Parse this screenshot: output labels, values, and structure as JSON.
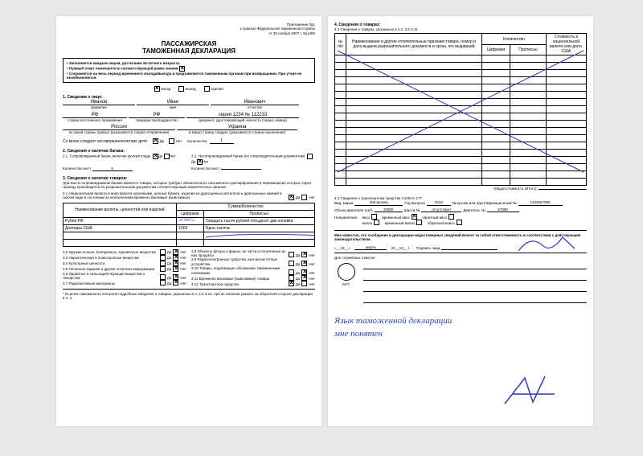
{
  "annex": {
    "line1": "Приложение №1",
    "line2": "к приказу Федеральной таможенной службы",
    "line3": "от 30 ноября 2007 г. №1480"
  },
  "title": {
    "l1": "ПАССАЖИРСКАЯ",
    "l2": "ТАМОЖЕННАЯ ДЕКЛАРАЦИЯ"
  },
  "instr": {
    "b1": "Заполняется каждым лицом, достигшим 16-летнего возраста.",
    "b2a": "Нужный ответ помечается в соответствующей рамке знаком",
    "b3": "Сохраняется на весь период временного въезда/выезда и предъявляется таможенным органам при возвращении. При утере не возобновляется."
  },
  "dir": {
    "in": "въезд",
    "out": "выезд",
    "tr": "транзит"
  },
  "s1": {
    "h": "1. Сведения о лице:",
    "fam": "Иванов",
    "famc": "фамилия",
    "name": "Иван",
    "namec": "имя",
    "patr": "Иванович",
    "patrc": "отчество",
    "ctz": "РФ",
    "ctzc": "страна постоянного проживания",
    "citz": "РФ",
    "citzc": "гражданство/подданство",
    "doc": "серия 1234 № 112233",
    "docc": "документ, удостоверяющий личность (серия, номер)",
    "from": "Россия",
    "fromc": "из какой страны прибыл (указывается страна отправления)",
    "to": "Украина",
    "toc": "в какую страну следует (указывается страна назначения)",
    "minors": "Со мною следуют несовершеннолетние дети",
    "da": "Да",
    "net": "Нет",
    "qty": "Количество:",
    "qtyv": "1"
  },
  "s2": {
    "h": "2. Сведения о наличии багажа:",
    "l21": "2.1. Сопровождаемый багаж, включая ручную кладь",
    "l22": "2.2. Несопровождаемый багаж (по сопроводительным документам)",
    "places": "Количество мест",
    "p1": "5",
    "p2": ""
  },
  "s3": {
    "h": "3. Сведения о наличии товаров:",
    "p": "При мне в сопровождаемом багаже имеются товары, которые требуют обязательного письменного декларирования и перемещение которых через границу производится по разрешительным документам соответствующих компетентных органов:",
    "l31": "3.1 Национальная валюта и иная валюта наличными, ценные бумаги, изделия из драгоценных металлов и драгоценных камней в любом виде и состоянии за исключением временно ввозимых (вывозимых)"
  },
  "cur": {
    "h1": "Наименование валюты, ценностей или изделий",
    "h2": "Сумма/Количество",
    "h2a": "Цифрами",
    "h2b": "Прописью",
    "r1": {
      "name": "Рубли РФ",
      "num": "30 000.52",
      "text": "Тридцать тысяч рублей пятьдесят две копейки"
    },
    "r2": {
      "name": "Доллары США",
      "num": "1000",
      "text": "Одна тысяча"
    },
    "hand_num_color": "#2a3fb0"
  },
  "items": {
    "32": "3.2 Оружие всякое, боеприпасы, взрывчатые вещества",
    "33": "3.3 Наркотические и психотропные вещества",
    "34": "3.4 Культурные ценности",
    "35": "3.5 Печатные издания и другие носители информации",
    "36": "3.6 Ядовитые и сильнодействующие вещества и лекарства",
    "37": "3.7 Радиоактивные материалы",
    "38": "3.8 Объекты флоры и фауны, их части и полученные из них продукты",
    "39": "3.9 Радиоэлектронные средства, высокочастотные устройства",
    "310": "3.10 Товары, подлежащие обложению таможенными платежами",
    "311": "3.11 Временно ввозимые (вывозимые) товары",
    "312": "3.12 Транспортное средство"
  },
  "foot": "* В целях таможенного контроля подробные сведения о товарах, указанных в п. 3.2-3.12, при их наличии указать на оборотной стороне декларации в п. 4.",
  "s4": {
    "h": "4. Сведения о товарах:",
    "sub41": "4.1 Сведения о товарах, указанных в п.п. 3.2-3.11",
    "th_no": "№ п/п",
    "th_name": "Наименование и другие отличительные признаки товара, номер и дата выдачи разрешительного документа и орган, его выдавший",
    "th_qty": "Количество",
    "th_qtya": "Цифрами",
    "th_qtyb": "Прописью",
    "th_val": "Стоимость в национальной валюте или долл. США",
    "total": "Общая стоимость (Итого):",
    "rows": 18
  },
  "s42": {
    "h": "4.2 Сведения о транспортном средстве А100АА 177",
    "type": "Вид, марка",
    "typev": "Запорожец",
    "year": "Год выпуска",
    "yearv": "2010",
    "body": "№ кузова или идентификационный №",
    "bodyv": "1234567890",
    "eng": "Объем двигателя (см³)",
    "engv": "10000",
    "chas": "Шасси №",
    "chasv": "отсутствует",
    "engno": "Двигатель №",
    "engnov": "67890",
    "dir": "Направление:",
    "inl": "ввоз",
    "outl": "вывоз",
    "tin": "временный ввоз",
    "tout": "временный вывоз",
    "rin": "обратный ввоз",
    "rout": "обратный вывоз"
  },
  "decl": {
    "txt": "Мне известно, что сообщение в декларации недостоверных сведений влечет за собой ответственность в соответствии с действующим законодательством.",
    "d": "«__19__»",
    "m": "марта",
    "y": "20__10__ г.",
    "sig": "Подпись лица"
  },
  "svc": {
    "h": "Для служебных отметок:",
    "mp": "М.П."
  },
  "handnote": {
    "l1": "Язык таможенной декларации",
    "l2": "мне понятен"
  },
  "colors": {
    "ink": "#2a3fb0",
    "paper": "#ffffff"
  }
}
